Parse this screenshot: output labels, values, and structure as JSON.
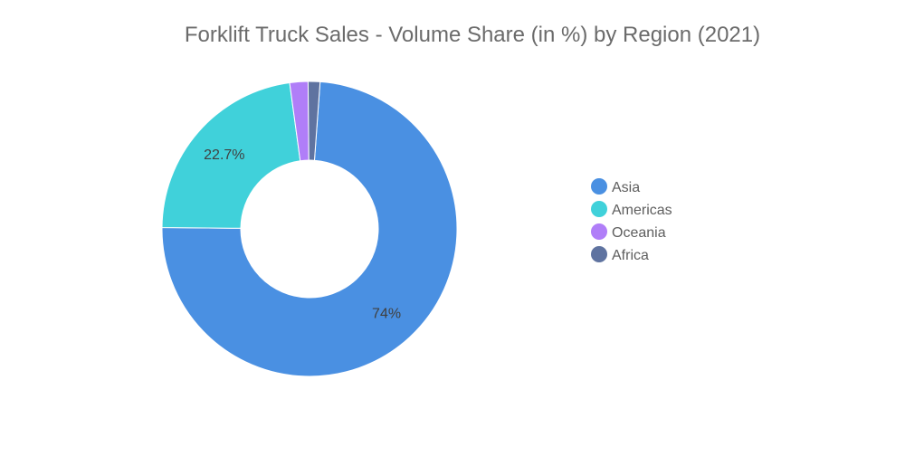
{
  "chart_data": {
    "type": "pie",
    "variant": "donut",
    "title": "Forklift Truck Sales - Volume Share (in %) by Region (2021)",
    "unit": "%",
    "legend_position": "right",
    "slices": [
      {
        "name": "Asia",
        "value": 74,
        "label": "74%",
        "color": "#4a90e2"
      },
      {
        "name": "Americas",
        "value": 22.7,
        "label": "22.7%",
        "color": "#40d1da"
      },
      {
        "name": "Oceania",
        "value": 2.0,
        "label": "",
        "color": "#b07ef8"
      },
      {
        "name": "Africa",
        "value": 1.3,
        "label": "",
        "color": "#5f73a0"
      }
    ]
  }
}
